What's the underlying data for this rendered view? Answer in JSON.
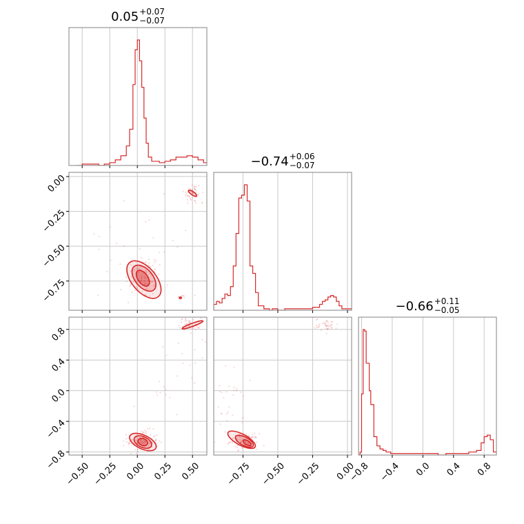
{
  "colors": {
    "primary": "#d62728",
    "grid": "#c8c8c8",
    "frame": "#808080"
  },
  "chart_data": {
    "type": "corner",
    "titles": [
      {
        "median": "0.05",
        "plus": "+0.07",
        "minus": "−0.07"
      },
      {
        "median": "−0.74",
        "plus": "+0.06",
        "minus": "−0.07"
      },
      {
        "median": "−0.66",
        "plus": "+0.11",
        "minus": "−0.05"
      }
    ],
    "ranges": [
      [
        -0.62,
        0.63
      ],
      [
        -0.96,
        0.03
      ],
      [
        -0.84,
        0.96
      ]
    ],
    "ticks": [
      [
        -0.5,
        -0.25,
        0.0,
        0.25,
        0.5
      ],
      [
        -0.75,
        -0.5,
        -0.25,
        0.0
      ],
      [
        -0.8,
        -0.4,
        0.0,
        0.4,
        0.8
      ]
    ],
    "tick_labels": [
      [
        "−0.50",
        "−0.25",
        "0.00",
        "0.25",
        "0.50"
      ],
      [
        "−0.75",
        "−0.50",
        "−0.25",
        "0.00"
      ],
      [
        "−0.8",
        "−0.4",
        "0.0",
        "0.4",
        "0.8"
      ]
    ],
    "histograms": [
      {
        "edges": [
          -0.55,
          -0.5,
          -0.45,
          -0.4,
          -0.35,
          -0.3,
          -0.25,
          -0.2,
          -0.15,
          -0.1,
          -0.07,
          -0.04,
          -0.02,
          0.0,
          0.02,
          0.04,
          0.06,
          0.08,
          0.1,
          0.13,
          0.16,
          0.2,
          0.25,
          0.3,
          0.35,
          0.4,
          0.45,
          0.5,
          0.55,
          0.6,
          0.63
        ],
        "counts": [
          0,
          1,
          1,
          1,
          0,
          1,
          2,
          4,
          7,
          14,
          26,
          58,
          83,
          90,
          75,
          56,
          34,
          16,
          6,
          3,
          3,
          2,
          3,
          4,
          6,
          6,
          7,
          6,
          4,
          2
        ]
      },
      {
        "edges": [
          -0.96,
          -0.94,
          -0.92,
          -0.9,
          -0.88,
          -0.86,
          -0.84,
          -0.82,
          -0.8,
          -0.78,
          -0.76,
          -0.74,
          -0.72,
          -0.7,
          -0.68,
          -0.66,
          -0.64,
          -0.62,
          -0.6,
          -0.58,
          -0.56,
          -0.54,
          -0.5,
          -0.45,
          -0.4,
          -0.35,
          -0.3,
          -0.25,
          -0.2,
          -0.18,
          -0.16,
          -0.14,
          -0.12,
          -0.1,
          -0.08,
          -0.06,
          -0.04,
          -0.02,
          0.0,
          0.03
        ],
        "counts": [
          4,
          6,
          5,
          8,
          11,
          10,
          16,
          30,
          52,
          76,
          78,
          85,
          74,
          30,
          25,
          12,
          3,
          3,
          1,
          1,
          0,
          1,
          0,
          1,
          1,
          1,
          1,
          2,
          4,
          6,
          7,
          9,
          10,
          9,
          6,
          3,
          1,
          1,
          1
        ]
      },
      {
        "edges": [
          -0.84,
          -0.82,
          -0.8,
          -0.78,
          -0.76,
          -0.74,
          -0.72,
          -0.7,
          -0.68,
          -0.66,
          -0.64,
          -0.62,
          -0.6,
          -0.58,
          -0.56,
          -0.54,
          -0.52,
          -0.5,
          -0.48,
          -0.46,
          -0.44,
          -0.42,
          -0.4,
          -0.3,
          -0.2,
          -0.1,
          0.0,
          0.1,
          0.2,
          0.3,
          0.4,
          0.5,
          0.6,
          0.7,
          0.76,
          0.8,
          0.84,
          0.88,
          0.92,
          0.96
        ],
        "counts": [
          0,
          2,
          40,
          82,
          81,
          60,
          60,
          42,
          33,
          33,
          12,
          12,
          6,
          6,
          4,
          4,
          3,
          3,
          2,
          2,
          2,
          1,
          1,
          1,
          1,
          1,
          1,
          1,
          0,
          1,
          1,
          1,
          2,
          3,
          8,
          12,
          13,
          10,
          2
        ]
      }
    ],
    "scatter_pairs": [
      {
        "x_param": 0,
        "y_param": 1,
        "clusters": [
          {
            "cx": 0.05,
            "cy": -0.72,
            "sx": 0.08,
            "sy": 0.08,
            "n": 110
          },
          {
            "cx": 0.5,
            "cy": -0.12,
            "sx": 0.04,
            "sy": 0.04,
            "n": 50
          },
          {
            "cx": 0.4,
            "cy": -0.87,
            "sx": 0.02,
            "sy": 0.01,
            "n": 8
          },
          {
            "cx": 0.1,
            "cy": -0.5,
            "sx": 0.3,
            "sy": 0.25,
            "n": 30
          }
        ],
        "contours": [
          {
            "cx": 0.05,
            "cy": -0.73,
            "rx": 0.045,
            "ry": 0.065,
            "angle": -35,
            "fill": 0.55
          },
          {
            "cx": 0.06,
            "cy": -0.73,
            "rx": 0.08,
            "ry": 0.11,
            "angle": -40,
            "fill": 0.3
          },
          {
            "cx": 0.06,
            "cy": -0.74,
            "rx": 0.11,
            "ry": 0.16,
            "angle": -40,
            "fill": 0.15
          },
          {
            "cx": 0.5,
            "cy": -0.12,
            "rx": 0.015,
            "ry": 0.035,
            "angle": -55,
            "fill": 0.2
          },
          {
            "cx": 0.39,
            "cy": -0.87,
            "rx": 0.01,
            "ry": 0.005,
            "angle": 0,
            "fill": 0.2
          }
        ]
      },
      {
        "x_param": 0,
        "y_param": 2,
        "clusters": [
          {
            "cx": 0.05,
            "cy": -0.66,
            "sx": 0.07,
            "sy": 0.07,
            "n": 110
          },
          {
            "cx": 0.48,
            "cy": 0.87,
            "sx": 0.05,
            "sy": 0.04,
            "n": 50
          },
          {
            "cx": 0.35,
            "cy": 0.1,
            "sx": 0.2,
            "sy": 0.4,
            "n": 30
          }
        ],
        "contours": [
          {
            "cx": 0.05,
            "cy": -0.67,
            "rx": 0.045,
            "ry": 0.045,
            "angle": 20,
            "fill": 0.55
          },
          {
            "cx": 0.05,
            "cy": -0.67,
            "rx": 0.085,
            "ry": 0.07,
            "angle": 25,
            "fill": 0.3
          },
          {
            "cx": 0.05,
            "cy": -0.67,
            "rx": 0.13,
            "ry": 0.09,
            "angle": 25,
            "fill": 0.15
          },
          {
            "cx": 0.5,
            "cy": 0.86,
            "rx": 0.1,
            "ry": 0.02,
            "angle": -20,
            "fill": 0.15
          }
        ]
      },
      {
        "x_param": 1,
        "y_param": 2,
        "clusters": [
          {
            "cx": -0.74,
            "cy": -0.66,
            "sx": 0.05,
            "sy": 0.05,
            "n": 110
          },
          {
            "cx": -0.15,
            "cy": 0.86,
            "sx": 0.04,
            "sy": 0.04,
            "n": 40
          },
          {
            "cx": -0.85,
            "cy": -0.2,
            "sx": 0.05,
            "sy": 0.25,
            "n": 30
          }
        ],
        "contours": [
          {
            "cx": -0.72,
            "cy": -0.68,
            "rx": 0.015,
            "ry": 0.06,
            "angle": -60,
            "fill": 0.55
          },
          {
            "cx": -0.74,
            "cy": -0.66,
            "rx": 0.03,
            "ry": 0.13,
            "angle": -62,
            "fill": 0.3
          },
          {
            "cx": -0.76,
            "cy": -0.64,
            "rx": 0.04,
            "ry": 0.2,
            "angle": -62,
            "fill": 0.15
          }
        ]
      }
    ],
    "grid": true
  }
}
